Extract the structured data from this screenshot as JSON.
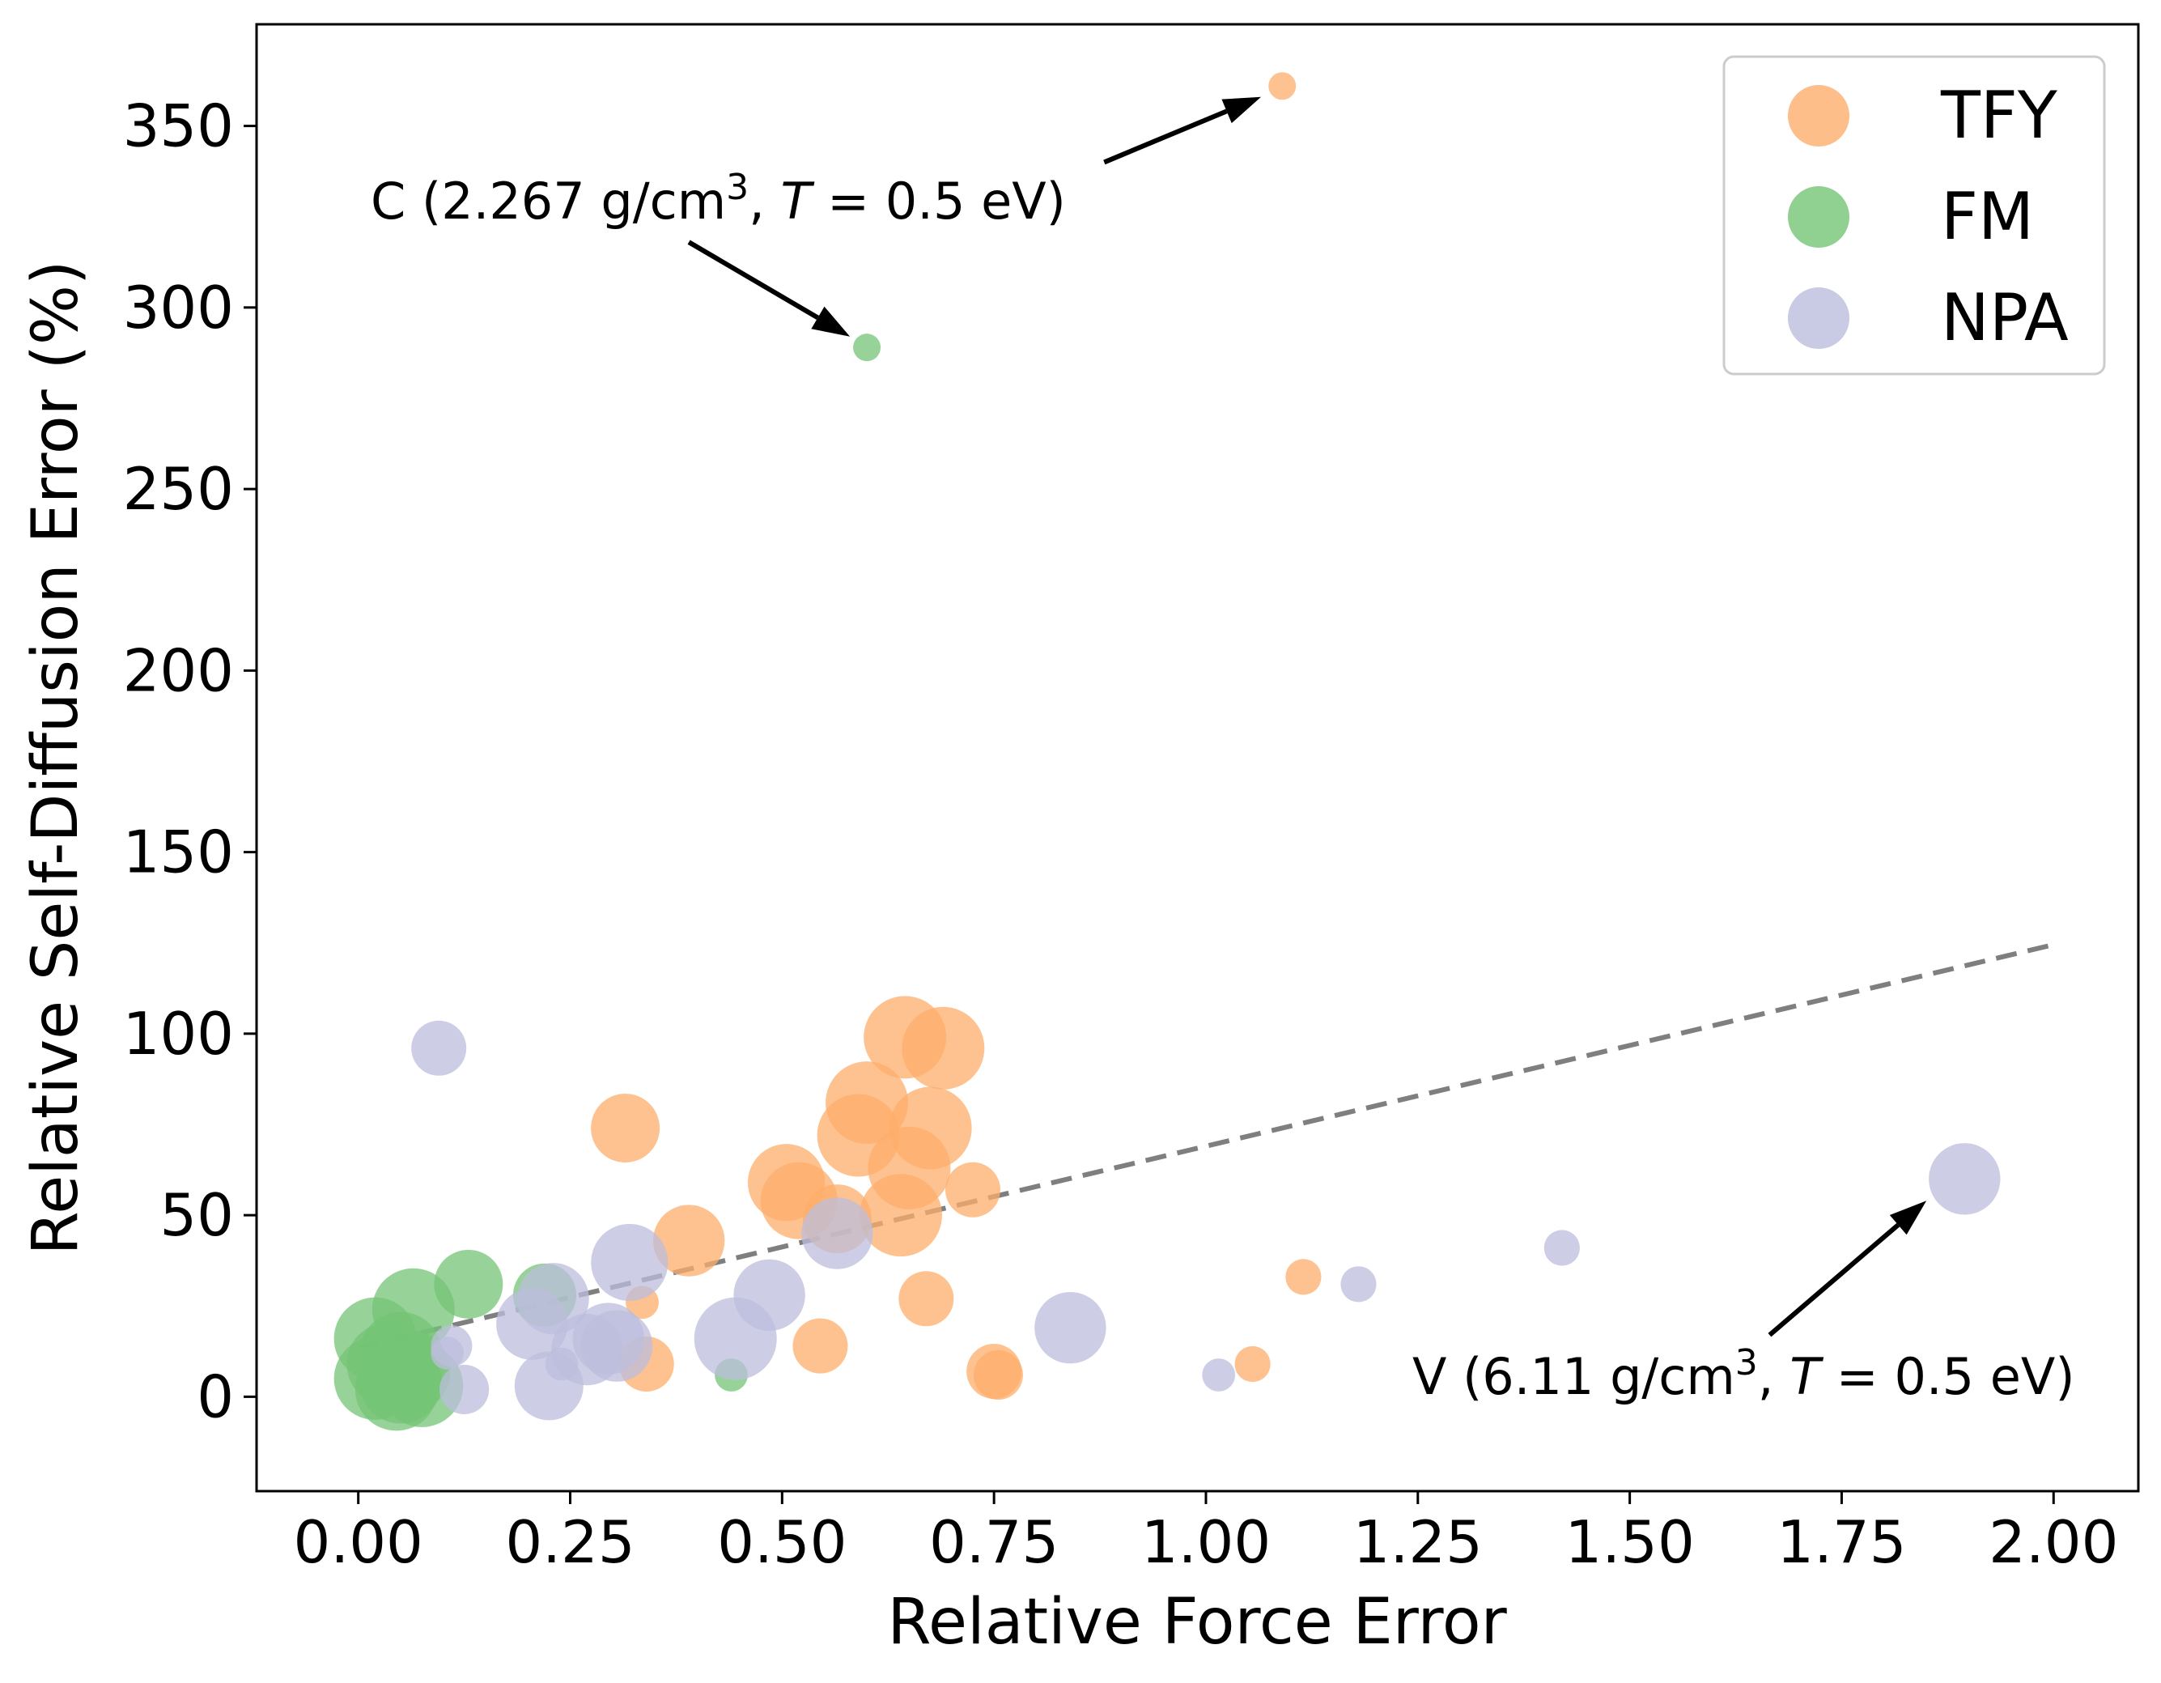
{
  "chart_data": {
    "type": "scatter",
    "title": "",
    "xlabel": "Relative Force Error",
    "ylabel": "Relative Self-Diffusion Error (%)",
    "xlim": [
      -0.12,
      2.1
    ],
    "ylim": [
      -26,
      378
    ],
    "xticks": [
      0.0,
      0.25,
      0.5,
      0.75,
      1.0,
      1.25,
      1.5,
      1.75,
      2.0
    ],
    "xtick_labels": [
      "0.00",
      "0.25",
      "0.50",
      "0.75",
      "1.00",
      "1.25",
      "1.50",
      "1.75",
      "2.00"
    ],
    "yticks": [
      0,
      50,
      100,
      150,
      200,
      250,
      300,
      350
    ],
    "ytick_labels": [
      "0",
      "50",
      "100",
      "150",
      "200",
      "250",
      "300",
      "350"
    ],
    "grid": false,
    "legend_position": "top-right",
    "marker_size_note": "marker size varies per point (relative units)",
    "series": [
      {
        "name": "TFY",
        "color": "#fdae6b",
        "points": [
          {
            "x": 1.09,
            "y": 361,
            "s": 1
          },
          {
            "x": 0.645,
            "y": 99,
            "s": 3
          },
          {
            "x": 0.69,
            "y": 96,
            "s": 3
          },
          {
            "x": 0.6,
            "y": 81,
            "s": 3
          },
          {
            "x": 0.59,
            "y": 72,
            "s": 3
          },
          {
            "x": 0.675,
            "y": 74,
            "s": 3
          },
          {
            "x": 0.315,
            "y": 74,
            "s": 2.5
          },
          {
            "x": 0.65,
            "y": 63,
            "s": 3
          },
          {
            "x": 0.505,
            "y": 59,
            "s": 2.8
          },
          {
            "x": 0.725,
            "y": 57,
            "s": 2
          },
          {
            "x": 0.52,
            "y": 54,
            "s": 2.8
          },
          {
            "x": 0.64,
            "y": 50,
            "s": 3
          },
          {
            "x": 0.565,
            "y": 49,
            "s": 2.5
          },
          {
            "x": 0.39,
            "y": 43,
            "s": 2.6
          },
          {
            "x": 0.67,
            "y": 27,
            "s": 2
          },
          {
            "x": 0.335,
            "y": 26,
            "s": 1.2
          },
          {
            "x": 1.115,
            "y": 33,
            "s": 1.3
          },
          {
            "x": 0.545,
            "y": 14,
            "s": 2
          },
          {
            "x": 0.34,
            "y": 9,
            "s": 2
          },
          {
            "x": 0.75,
            "y": 7,
            "s": 2
          },
          {
            "x": 0.755,
            "y": 6,
            "s": 1.8
          },
          {
            "x": 1.055,
            "y": 9,
            "s": 1.3
          }
        ]
      },
      {
        "name": "FM",
        "color": "#74c476",
        "points": [
          {
            "x": 0.6,
            "y": 289,
            "s": 1
          },
          {
            "x": 0.13,
            "y": 31,
            "s": 2.5
          },
          {
            "x": 0.22,
            "y": 28,
            "s": 2.3
          },
          {
            "x": 0.065,
            "y": 24,
            "s": 3
          },
          {
            "x": 0.02,
            "y": 16,
            "s": 3
          },
          {
            "x": 0.05,
            "y": 12,
            "s": 3
          },
          {
            "x": 0.035,
            "y": 9,
            "s": 3
          },
          {
            "x": 0.06,
            "y": 7,
            "s": 3
          },
          {
            "x": 0.02,
            "y": 5,
            "s": 3
          },
          {
            "x": 0.05,
            "y": 4,
            "s": 3
          },
          {
            "x": 0.075,
            "y": 3,
            "s": 3
          },
          {
            "x": 0.045,
            "y": 2,
            "s": 3
          },
          {
            "x": 0.44,
            "y": 6,
            "s": 1.2
          }
        ]
      },
      {
        "name": "NPA",
        "color": "#bcbddc",
        "points": [
          {
            "x": 0.095,
            "y": 96,
            "s": 2
          },
          {
            "x": 1.895,
            "y": 60,
            "s": 2.6
          },
          {
            "x": 0.565,
            "y": 45,
            "s": 2.6
          },
          {
            "x": 0.32,
            "y": 37,
            "s": 2.8
          },
          {
            "x": 1.42,
            "y": 41,
            "s": 1.3
          },
          {
            "x": 1.18,
            "y": 31,
            "s": 1.3
          },
          {
            "x": 0.485,
            "y": 28,
            "s": 2.6
          },
          {
            "x": 0.23,
            "y": 27,
            "s": 2.6
          },
          {
            "x": 0.205,
            "y": 20,
            "s": 2.6
          },
          {
            "x": 0.84,
            "y": 19,
            "s": 2.6
          },
          {
            "x": 0.445,
            "y": 16,
            "s": 3
          },
          {
            "x": 0.295,
            "y": 16,
            "s": 2.6
          },
          {
            "x": 0.305,
            "y": 14,
            "s": 2.6
          },
          {
            "x": 0.27,
            "y": 13,
            "s": 2.6
          },
          {
            "x": 0.11,
            "y": 14,
            "s": 1.5
          },
          {
            "x": 0.105,
            "y": 12,
            "s": 1.2
          },
          {
            "x": 0.24,
            "y": 9,
            "s": 1.2
          },
          {
            "x": 0.125,
            "y": 2,
            "s": 1.8
          },
          {
            "x": 0.225,
            "y": 3,
            "s": 2.5
          },
          {
            "x": 1.015,
            "y": 6,
            "s": 1.2
          }
        ]
      }
    ],
    "trendline": {
      "style": "dashed",
      "color": "#7f7f7f",
      "x": [
        0.0,
        2.0
      ],
      "y": [
        13.5,
        124.5
      ]
    },
    "annotations": [
      {
        "name": "annotation-c",
        "text_main": "C (2.267 g/cm",
        "text_sup": "3",
        "text_mid": ", ",
        "text_T": "T",
        "text_end": " = 0.5 eV)",
        "arrow_tail": {
          "x": 0.39,
          "y": 318
        },
        "arrow_head": {
          "x": 0.58,
          "y": 292
        }
      },
      {
        "name": "annotation-c-top",
        "arrow_tail": {
          "x": 0.88,
          "y": 340
        },
        "arrow_head": {
          "x": 1.065,
          "y": 358
        }
      },
      {
        "name": "annotation-v",
        "text_main": "V (6.11 g/cm",
        "text_sup": "3",
        "text_mid": ", ",
        "text_T": "T",
        "text_end": " = 0.5 eV)",
        "arrow_tail": {
          "x": 1.665,
          "y": 17
        },
        "arrow_head": {
          "x": 1.85,
          "y": 54
        }
      }
    ],
    "legend": [
      {
        "label": "TFY",
        "color": "#fdae6b"
      },
      {
        "label": "FM",
        "color": "#74c476"
      },
      {
        "label": "NPA",
        "color": "#bcbddc"
      }
    ]
  }
}
